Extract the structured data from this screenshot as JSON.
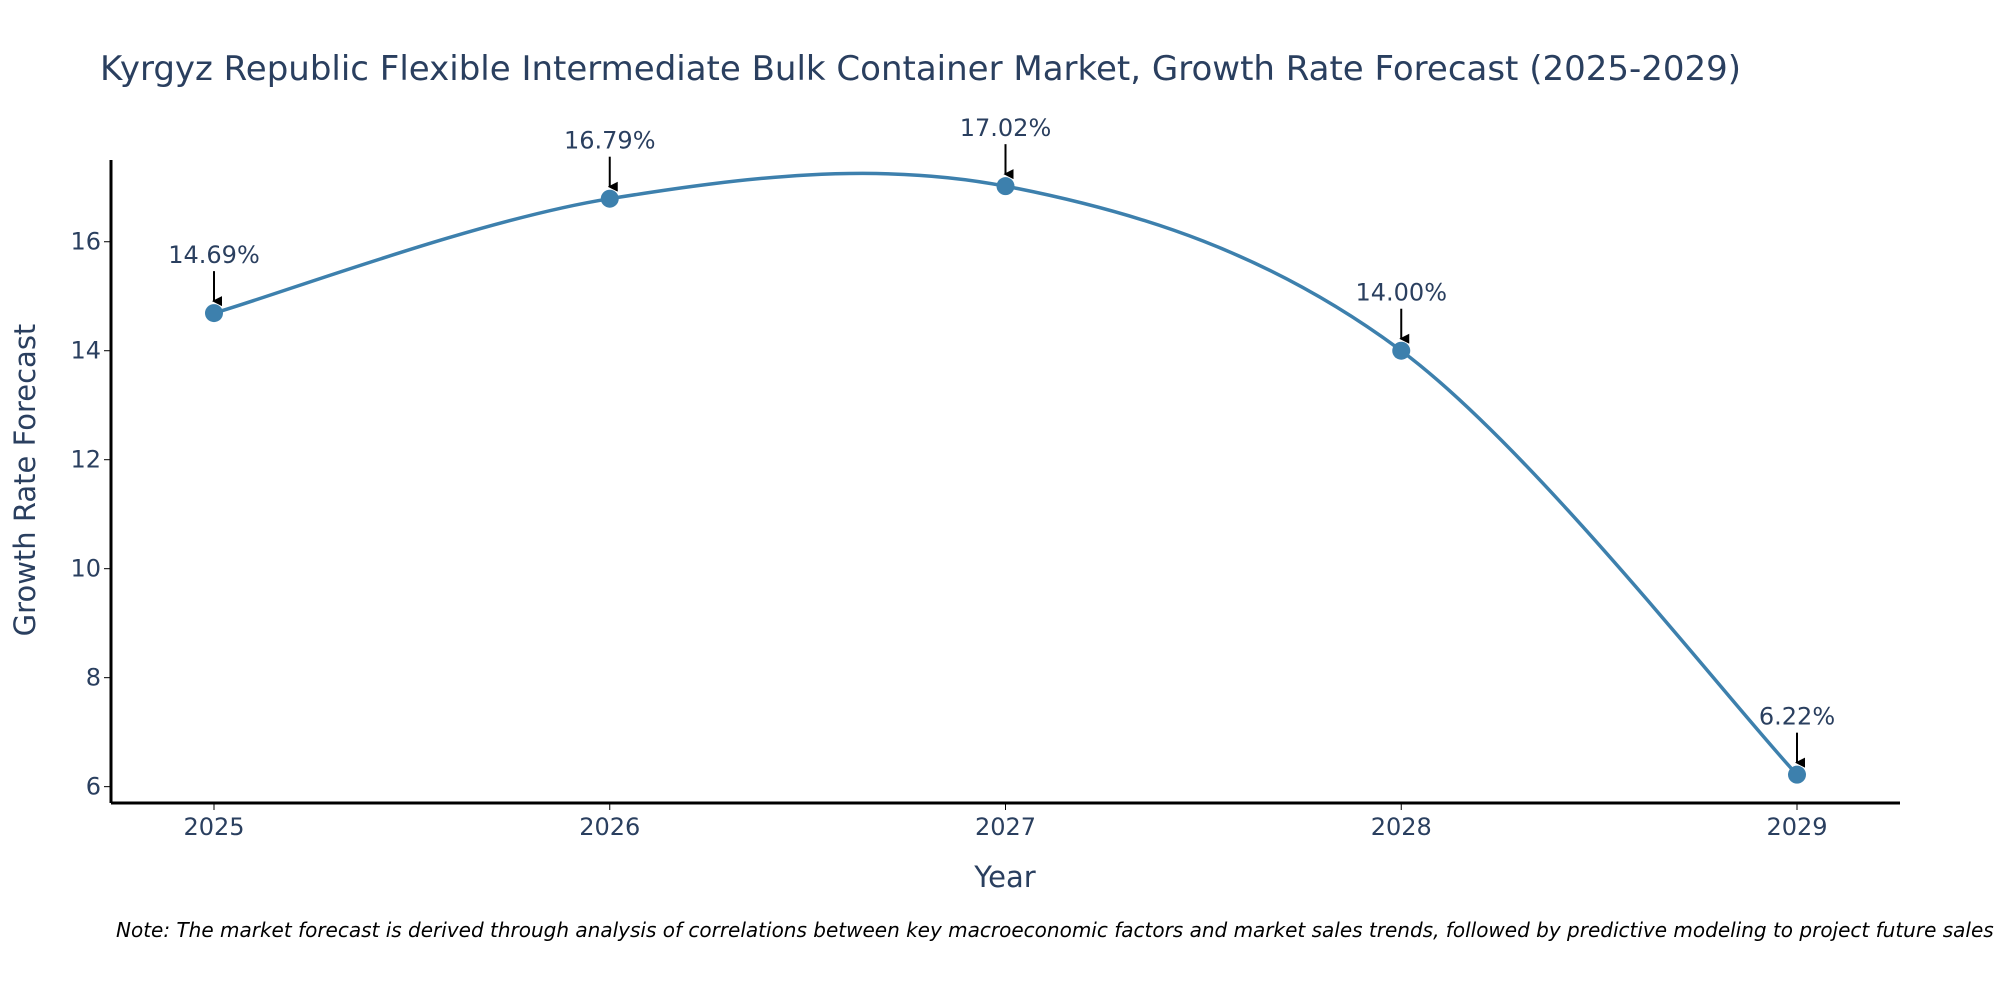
{
  "chart_data": {
    "type": "line",
    "title": "Kyrgyz Republic Flexible Intermediate Bulk Container Market, Growth Rate Forecast (2025-2029)",
    "xlabel": "Year",
    "ylabel": "Growth Rate Forecast",
    "categories": [
      "2025",
      "2026",
      "2027",
      "2028",
      "2029"
    ],
    "series": [
      {
        "name": "Growth Rate Forecast",
        "values": [
          14.69,
          16.79,
          17.02,
          14.0,
          6.22
        ]
      }
    ],
    "data_labels": [
      "14.69%",
      "16.79%",
      "17.02%",
      "14.00%",
      "6.22%"
    ],
    "y_ticks": [
      6,
      8,
      10,
      12,
      14,
      16
    ],
    "y_tick_labels": [
      "6",
      "8",
      "10",
      "12",
      "14",
      "16"
    ],
    "ylim": [
      5.7,
      17.5
    ],
    "grid": false,
    "line_shape": "spline",
    "colors": {
      "line": "#3d80ad",
      "marker": "#3d80ad",
      "text": "#2a3f5f",
      "axis": "#000000",
      "arrow": "#000000"
    }
  },
  "note": "Note: The market forecast is derived through analysis of correlations between key macroeconomic factors and market sales trends, followed by predictive modeling to project future sales"
}
